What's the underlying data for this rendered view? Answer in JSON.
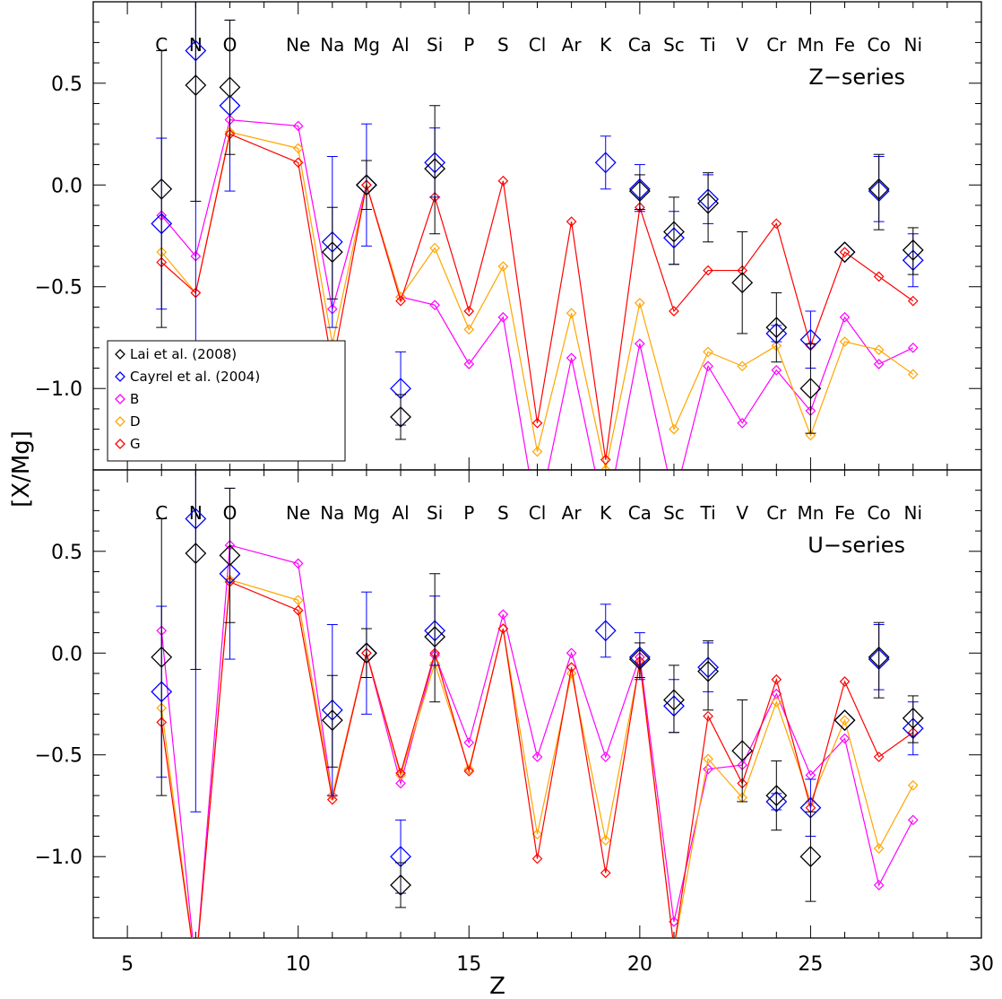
{
  "chart_data": {
    "type": "scatter",
    "xlabel": "Z",
    "ylabel": "[X/Mg]",
    "xlim": [
      4,
      30
    ],
    "ylim": [
      -1.4,
      0.9
    ],
    "x_ticks": [
      5,
      10,
      15,
      20,
      25,
      30
    ],
    "y_ticks": [
      0.5,
      0.0,
      -0.5,
      -1.0
    ],
    "y_tick_labels": [
      "0.5",
      "0.0",
      "−0.5",
      "−1.0"
    ],
    "element_labels": [
      {
        "z": 6,
        "sym": "C"
      },
      {
        "z": 7,
        "sym": "N"
      },
      {
        "z": 8,
        "sym": "O"
      },
      {
        "z": 10,
        "sym": "Ne"
      },
      {
        "z": 11,
        "sym": "Na"
      },
      {
        "z": 12,
        "sym": "Mg"
      },
      {
        "z": 13,
        "sym": "Al"
      },
      {
        "z": 14,
        "sym": "Si"
      },
      {
        "z": 15,
        "sym": "P"
      },
      {
        "z": 16,
        "sym": "S"
      },
      {
        "z": 17,
        "sym": "Cl"
      },
      {
        "z": 18,
        "sym": "Ar"
      },
      {
        "z": 19,
        "sym": "K"
      },
      {
        "z": 20,
        "sym": "Ca"
      },
      {
        "z": 21,
        "sym": "Sc"
      },
      {
        "z": 22,
        "sym": "Ti"
      },
      {
        "z": 23,
        "sym": "V"
      },
      {
        "z": 24,
        "sym": "Cr"
      },
      {
        "z": 25,
        "sym": "Mn"
      },
      {
        "z": 26,
        "sym": "Fe"
      },
      {
        "z": 27,
        "sym": "Co"
      },
      {
        "z": 28,
        "sym": "Ni"
      }
    ],
    "legend": {
      "placement": "lower-left of top panel",
      "entries": [
        {
          "label": "Lai et al. (2008)",
          "color": "#000000"
        },
        {
          "label": "Cayrel et al. (2004)",
          "color": "#0000ff"
        },
        {
          "label": "B",
          "color": "#ff00ff"
        },
        {
          "label": "D",
          "color": "#ffa500"
        },
        {
          "label": "G",
          "color": "#ff0000"
        }
      ]
    },
    "observations": {
      "lai": {
        "name": "Lai et al. (2008)",
        "color": "#000000",
        "points": [
          {
            "z": 6,
            "y": -0.02,
            "err_lo": 0.68,
            "err_hi": 0.68
          },
          {
            "z": 7,
            "y": 0.49,
            "err_lo": 0.57,
            "err_hi": 0.57
          },
          {
            "z": 8,
            "y": 0.48,
            "err_lo": 0.33,
            "err_hi": 0.33
          },
          {
            "z": 11,
            "y": -0.33,
            "err_lo": 0.23,
            "err_hi": 0.22
          },
          {
            "z": 12,
            "y": 0.0,
            "err_lo": 0.12,
            "err_hi": 0.12
          },
          {
            "z": 13,
            "y": -1.14,
            "err_lo": 0.11,
            "err_hi": 0.11
          },
          {
            "z": 14,
            "y": 0.08,
            "err_lo": 0.32,
            "err_hi": 0.31
          },
          {
            "z": 20,
            "y": -0.03,
            "err_lo": 0.09,
            "err_hi": 0.08
          },
          {
            "z": 21,
            "y": -0.23,
            "err_lo": 0.16,
            "err_hi": 0.17
          },
          {
            "z": 22,
            "y": -0.09,
            "err_lo": 0.19,
            "err_hi": 0.15
          },
          {
            "z": 23,
            "y": -0.48,
            "err_lo": 0.25,
            "err_hi": 0.25
          },
          {
            "z": 24,
            "y": -0.7,
            "err_lo": 0.17,
            "err_hi": 0.17
          },
          {
            "z": 25,
            "y": -1.0,
            "err_lo": 0.22,
            "err_hi": 0.22
          },
          {
            "z": 26,
            "y": -0.33,
            "err_lo": 0.0,
            "err_hi": 0.0
          },
          {
            "z": 27,
            "y": -0.02,
            "err_lo": 0.2,
            "err_hi": 0.17
          },
          {
            "z": 28,
            "y": -0.32,
            "err_lo": 0.12,
            "err_hi": 0.11
          }
        ]
      },
      "cayrel": {
        "name": "Cayrel et al. (2004)",
        "color": "#0000ff",
        "points": [
          {
            "z": 6,
            "y": -0.19,
            "err_lo": 0.42,
            "err_hi": 0.42
          },
          {
            "z": 7,
            "y": 0.66,
            "err_lo": 1.44,
            "err_hi": 0.4
          },
          {
            "z": 8,
            "y": 0.39,
            "err_lo": 0.42,
            "err_hi": 0.42
          },
          {
            "z": 11,
            "y": -0.28,
            "err_lo": 0.42,
            "err_hi": 0.42
          },
          {
            "z": 12,
            "y": 0.0,
            "err_lo": 0.3,
            "err_hi": 0.3
          },
          {
            "z": 13,
            "y": -1.0,
            "err_lo": 0.18,
            "err_hi": 0.18
          },
          {
            "z": 14,
            "y": 0.11,
            "err_lo": 0.17,
            "err_hi": 0.17
          },
          {
            "z": 19,
            "y": 0.11,
            "err_lo": 0.13,
            "err_hi": 0.13
          },
          {
            "z": 20,
            "y": -0.02,
            "err_lo": 0.11,
            "err_hi": 0.12
          },
          {
            "z": 21,
            "y": -0.26,
            "err_lo": 0.13,
            "err_hi": 0.13
          },
          {
            "z": 22,
            "y": -0.07,
            "err_lo": 0.12,
            "err_hi": 0.12
          },
          {
            "z": 24,
            "y": -0.73,
            "err_lo": 0.04,
            "err_hi": 0.04
          },
          {
            "z": 25,
            "y": -0.76,
            "err_lo": 0.14,
            "err_hi": 0.14
          },
          {
            "z": 26,
            "y": -0.33,
            "err_lo": 0.0,
            "err_hi": 0.0
          },
          {
            "z": 27,
            "y": -0.03,
            "err_lo": 0.15,
            "err_hi": 0.17
          },
          {
            "z": 28,
            "y": -0.37,
            "err_lo": 0.13,
            "err_hi": 0.13
          }
        ]
      }
    },
    "panels": [
      {
        "label": "Z−series",
        "series": [
          {
            "name": "B",
            "color": "#ff00ff",
            "x": [
              6,
              7,
              8,
              10,
              11,
              12,
              13,
              14,
              15,
              16,
              17,
              18,
              19,
              20,
              21,
              22,
              23,
              24,
              25,
              26,
              27,
              28
            ],
            "y": [
              -0.15,
              -0.35,
              0.32,
              0.29,
              -0.61,
              0.0,
              -0.55,
              -0.59,
              -0.88,
              -0.65,
              -1.65,
              -0.85,
              -1.65,
              -0.78,
              -1.55,
              -0.89,
              -1.17,
              -0.91,
              -1.11,
              -0.65,
              -0.88,
              -0.8
            ]
          },
          {
            "name": "D",
            "color": "#ffa500",
            "x": [
              6,
              7,
              8,
              10,
              11,
              12,
              13,
              14,
              15,
              16,
              17,
              18,
              19,
              20,
              21,
              22,
              23,
              24,
              25,
              26,
              27,
              28
            ],
            "y": [
              -0.33,
              -0.53,
              0.26,
              0.18,
              -0.78,
              0.0,
              -0.55,
              -0.31,
              -0.71,
              -0.4,
              -1.31,
              -0.63,
              -1.4,
              -0.58,
              -1.2,
              -0.82,
              -0.89,
              -0.79,
              -1.23,
              -0.77,
              -0.81,
              -0.93
            ]
          },
          {
            "name": "G",
            "color": "#ff0000",
            "x": [
              6,
              7,
              8,
              10,
              11,
              12,
              13,
              14,
              15,
              16,
              17,
              18,
              19,
              20,
              21,
              22,
              23,
              24,
              25,
              26,
              27,
              28
            ],
            "y": [
              -0.38,
              -0.53,
              0.25,
              0.11,
              -0.89,
              0.0,
              -0.57,
              -0.06,
              -0.62,
              0.02,
              -1.17,
              -0.18,
              -1.35,
              -0.11,
              -0.62,
              -0.42,
              -0.42,
              -0.19,
              -0.79,
              -0.33,
              -0.45,
              -0.57
            ]
          }
        ]
      },
      {
        "label": "U−series",
        "series": [
          {
            "name": "B",
            "color": "#ff00ff",
            "x": [
              6,
              7,
              8,
              10,
              11,
              12,
              13,
              14,
              15,
              16,
              17,
              18,
              19,
              20,
              21,
              22,
              23,
              24,
              25,
              26,
              27,
              28
            ],
            "y": [
              0.11,
              -1.55,
              0.53,
              0.44,
              -0.7,
              0.0,
              -0.64,
              -0.01,
              -0.44,
              0.19,
              -0.51,
              0.0,
              -0.51,
              -0.02,
              -1.32,
              -0.57,
              -0.55,
              -0.2,
              -0.6,
              -0.42,
              -1.14,
              -0.82
            ]
          },
          {
            "name": "D",
            "color": "#ffa500",
            "x": [
              6,
              7,
              8,
              10,
              11,
              12,
              13,
              14,
              15,
              16,
              17,
              18,
              19,
              20,
              21,
              22,
              23,
              24,
              25,
              26,
              27,
              28
            ],
            "y": [
              -0.27,
              -1.55,
              0.36,
              0.26,
              -0.7,
              0.0,
              -0.6,
              -0.05,
              -0.57,
              0.12,
              -0.89,
              -0.1,
              -0.92,
              -0.05,
              -1.45,
              -0.52,
              -0.71,
              -0.24,
              -0.73,
              -0.33,
              -0.96,
              -0.65
            ]
          },
          {
            "name": "G",
            "color": "#ff0000",
            "x": [
              6,
              7,
              8,
              10,
              11,
              12,
              13,
              14,
              15,
              16,
              17,
              18,
              19,
              20,
              21,
              22,
              23,
              24,
              25,
              26,
              27,
              28
            ],
            "y": [
              -0.34,
              -1.55,
              0.35,
              0.21,
              -0.72,
              0.0,
              -0.59,
              0.0,
              -0.58,
              0.12,
              -1.01,
              -0.07,
              -1.08,
              -0.04,
              -1.45,
              -0.31,
              -0.64,
              -0.13,
              -0.76,
              -0.14,
              -0.51,
              -0.39
            ]
          }
        ]
      }
    ]
  }
}
